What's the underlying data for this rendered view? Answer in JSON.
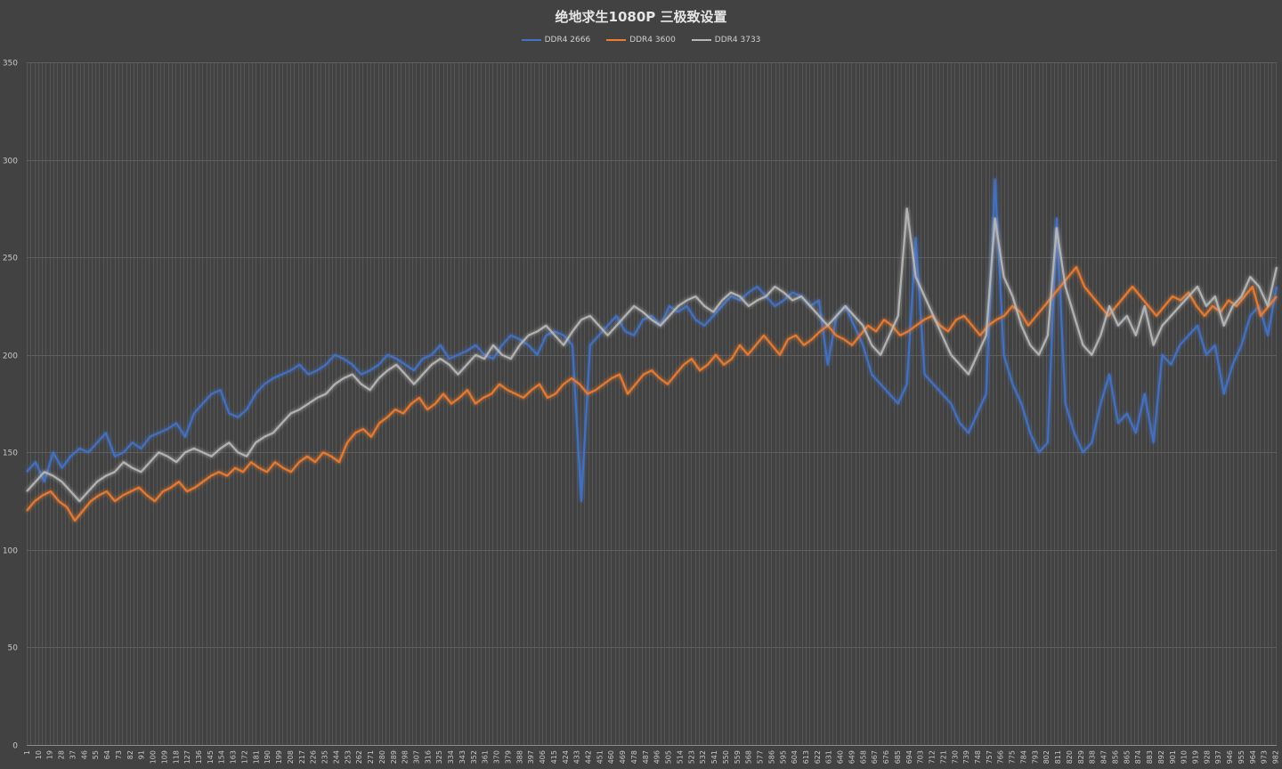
{
  "chart_data": {
    "type": "line",
    "title": "绝地求生1080P 三极致设置",
    "xlabel": "",
    "ylabel": "",
    "ylim": [
      0,
      350
    ],
    "y_ticks": [
      0,
      50,
      100,
      150,
      200,
      250,
      300,
      350
    ],
    "x_range": [
      1,
      983
    ],
    "x_tick_labels": [
      "1",
      "10",
      "19",
      "28",
      "37",
      "46",
      "55",
      "64",
      "73",
      "82",
      "91",
      "100",
      "109",
      "118",
      "127",
      "136",
      "145",
      "154",
      "163",
      "172",
      "181",
      "190",
      "199",
      "208",
      "217",
      "226",
      "235",
      "244",
      "253",
      "262",
      "271",
      "280",
      "289",
      "298",
      "307",
      "316",
      "325",
      "334",
      "343",
      "352",
      "361",
      "370",
      "379",
      "388",
      "397",
      "406",
      "415",
      "424",
      "433",
      "442",
      "451",
      "460",
      "469",
      "478",
      "487",
      "496",
      "505",
      "514",
      "523",
      "532",
      "541",
      "550",
      "559",
      "568",
      "577",
      "586",
      "595",
      "604",
      "613",
      "622",
      "631",
      "640",
      "649",
      "658",
      "667",
      "676",
      "685",
      "694",
      "703",
      "712",
      "721",
      "730",
      "739",
      "748",
      "757",
      "766",
      "775",
      "784",
      "793",
      "802",
      "811",
      "820",
      "829",
      "838",
      "847",
      "856",
      "865",
      "874",
      "883",
      "892",
      "901",
      "910",
      "919",
      "928",
      "937",
      "946",
      "955",
      "964",
      "973",
      "982"
    ],
    "grid": true,
    "legend_position": "top-center",
    "series": [
      {
        "name": "DDR4 2666",
        "color": "#4472c4",
        "values": [
          140,
          145,
          135,
          150,
          142,
          148,
          152,
          150,
          155,
          160,
          148,
          150,
          155,
          152,
          158,
          160,
          162,
          165,
          158,
          170,
          175,
          180,
          182,
          170,
          168,
          172,
          180,
          185,
          188,
          190,
          192,
          195,
          190,
          192,
          195,
          200,
          198,
          195,
          190,
          192,
          195,
          200,
          198,
          195,
          192,
          198,
          200,
          205,
          198,
          200,
          202,
          205,
          200,
          198,
          205,
          210,
          208,
          205,
          200,
          210,
          212,
          210,
          205,
          125,
          205,
          210,
          215,
          220,
          212,
          210,
          218,
          220,
          215,
          225,
          222,
          225,
          218,
          215,
          220,
          225,
          230,
          228,
          232,
          235,
          230,
          225,
          228,
          232,
          230,
          225,
          228,
          195,
          220,
          225,
          215,
          205,
          190,
          185,
          180,
          175,
          185,
          260,
          190,
          185,
          180,
          175,
          165,
          160,
          170,
          180,
          290,
          200,
          185,
          175,
          160,
          150,
          155,
          270,
          175,
          160,
          150,
          155,
          175,
          190,
          165,
          170,
          160,
          180,
          155,
          200,
          195,
          205,
          210,
          215,
          200,
          205,
          180,
          195,
          205,
          220,
          225,
          210,
          235
        ]
      },
      {
        "name": "DDR4 3600",
        "color": "#ed7d31",
        "values": [
          120,
          125,
          128,
          130,
          125,
          122,
          115,
          120,
          125,
          128,
          130,
          125,
          128,
          130,
          132,
          128,
          125,
          130,
          132,
          135,
          130,
          132,
          135,
          138,
          140,
          138,
          142,
          140,
          145,
          142,
          140,
          145,
          142,
          140,
          145,
          148,
          145,
          150,
          148,
          145,
          155,
          160,
          162,
          158,
          165,
          168,
          172,
          170,
          175,
          178,
          172,
          175,
          180,
          175,
          178,
          182,
          175,
          178,
          180,
          185,
          182,
          180,
          178,
          182,
          185,
          178,
          180,
          185,
          188,
          185,
          180,
          182,
          185,
          188,
          190,
          180,
          185,
          190,
          192,
          188,
          185,
          190,
          195,
          198,
          192,
          195,
          200,
          195,
          198,
          205,
          200,
          205,
          210,
          205,
          200,
          208,
          210,
          205,
          208,
          212,
          215,
          210,
          208,
          205,
          210,
          215,
          212,
          218,
          215,
          210,
          212,
          215,
          218,
          220,
          215,
          212,
          218,
          220,
          215,
          210,
          215,
          218,
          220,
          225,
          222,
          215,
          220,
          225,
          230,
          235,
          240,
          245,
          235,
          230,
          225,
          220,
          225,
          230,
          235,
          230,
          225,
          220,
          225,
          230,
          228,
          232,
          225,
          220,
          225,
          222,
          228,
          225,
          230,
          235,
          220,
          225,
          230
        ]
      },
      {
        "name": "DDR4 3733",
        "color": "#b8b8b8",
        "values": [
          130,
          135,
          140,
          138,
          135,
          130,
          125,
          130,
          135,
          138,
          140,
          145,
          142,
          140,
          145,
          150,
          148,
          145,
          150,
          152,
          150,
          148,
          152,
          155,
          150,
          148,
          155,
          158,
          160,
          165,
          170,
          172,
          175,
          178,
          180,
          185,
          188,
          190,
          185,
          182,
          188,
          192,
          195,
          190,
          185,
          190,
          195,
          198,
          195,
          190,
          195,
          200,
          198,
          205,
          200,
          198,
          205,
          210,
          212,
          215,
          210,
          205,
          212,
          218,
          220,
          215,
          210,
          215,
          220,
          225,
          222,
          218,
          215,
          220,
          225,
          228,
          230,
          225,
          222,
          228,
          232,
          230,
          225,
          228,
          230,
          235,
          232,
          228,
          230,
          225,
          220,
          215,
          220,
          225,
          220,
          215,
          205,
          200,
          210,
          220,
          275,
          240,
          230,
          220,
          210,
          200,
          195,
          190,
          200,
          210,
          270,
          240,
          230,
          215,
          205,
          200,
          210,
          265,
          235,
          220,
          205,
          200,
          210,
          225,
          215,
          220,
          210,
          225,
          205,
          215,
          220,
          225,
          230,
          235,
          225,
          230,
          215,
          225,
          230,
          240,
          235,
          225,
          245
        ]
      }
    ]
  }
}
